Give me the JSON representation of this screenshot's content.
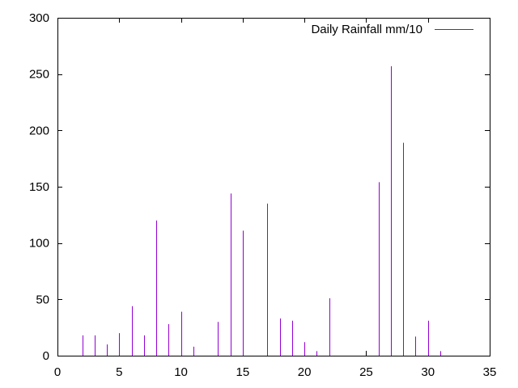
{
  "chart_data": {
    "type": "bar",
    "legend": {
      "label": "Daily Rainfall mm/10",
      "position": "top-right"
    },
    "series": [
      {
        "name": "Daily Rainfall mm/10",
        "color": "#9400d3",
        "x": [
          1,
          2,
          3,
          4,
          5,
          6,
          7,
          8,
          9,
          10,
          11,
          12,
          13,
          14,
          15,
          16,
          17,
          18,
          19,
          20,
          21,
          22,
          23,
          24,
          25,
          26,
          27,
          28,
          29,
          30,
          31
        ],
        "values": [
          0,
          18,
          18,
          10,
          20,
          44,
          18,
          120,
          28,
          39,
          8,
          0,
          30,
          144,
          111,
          0,
          135,
          33,
          31,
          12,
          4,
          51,
          0,
          0,
          0,
          154,
          257,
          189,
          17,
          31,
          4
        ]
      }
    ],
    "xlim": [
      0,
      35
    ],
    "ylim": [
      0,
      300
    ],
    "x_ticks": [
      0,
      5,
      10,
      15,
      20,
      25,
      30,
      35
    ],
    "y_ticks": [
      0,
      50,
      100,
      150,
      200,
      250,
      300
    ],
    "grid": false,
    "xlabel": "",
    "ylabel": "",
    "title": ""
  }
}
